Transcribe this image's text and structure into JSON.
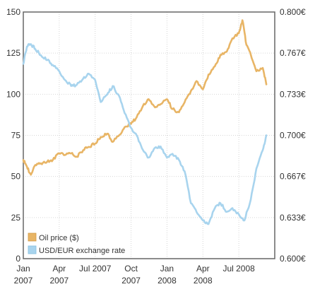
{
  "chart_data": {
    "type": "line",
    "title": "",
    "xlabel": "",
    "ylabel": "",
    "y_left": {
      "range": [
        0,
        150
      ],
      "ticks": [
        "0",
        "25",
        "50",
        "75",
        "100",
        "125",
        "150"
      ]
    },
    "y_right": {
      "range": [
        0.6,
        0.8
      ],
      "ticks": [
        "0.600€",
        "0.633€",
        "0.667€",
        "0.700€",
        "0.733€",
        "0.767€",
        "0.800€"
      ]
    },
    "x_axis": {
      "range": [
        "2007-01",
        "2008-10"
      ],
      "ticks": [
        {
          "month": 0,
          "line1": "Jan",
          "line2": "2007"
        },
        {
          "month": 3,
          "line1": "Apr",
          "line2": "2007"
        },
        {
          "month": 6,
          "line1": "Jul 2007",
          "line2": ""
        },
        {
          "month": 9,
          "line1": "Oct",
          "line2": "2007"
        },
        {
          "month": 12,
          "line1": "Jan",
          "line2": "2008"
        },
        {
          "month": 15,
          "line1": "Apr",
          "line2": "2008"
        },
        {
          "month": 18,
          "line1": "Jul 2008",
          "line2": ""
        }
      ]
    },
    "grid": true,
    "legend": {
      "position": "bottom-left"
    },
    "series": [
      {
        "name": "Oil price ($)",
        "axis": "left",
        "color": "#e8b566",
        "points": [
          [
            "2007-01-01",
            60
          ],
          [
            "2007-01-10",
            56
          ],
          [
            "2007-01-20",
            51
          ],
          [
            "2007-02-01",
            57
          ],
          [
            "2007-02-15",
            58
          ],
          [
            "2007-03-01",
            59
          ],
          [
            "2007-03-15",
            60
          ],
          [
            "2007-04-01",
            64
          ],
          [
            "2007-04-15",
            63
          ],
          [
            "2007-05-01",
            64
          ],
          [
            "2007-05-15",
            62
          ],
          [
            "2007-06-01",
            66
          ],
          [
            "2007-06-15",
            68
          ],
          [
            "2007-07-01",
            70
          ],
          [
            "2007-07-15",
            74
          ],
          [
            "2007-08-01",
            76
          ],
          [
            "2007-08-15",
            71
          ],
          [
            "2007-09-01",
            75
          ],
          [
            "2007-09-15",
            80
          ],
          [
            "2007-10-01",
            82
          ],
          [
            "2007-10-15",
            86
          ],
          [
            "2007-11-01",
            93
          ],
          [
            "2007-11-15",
            97
          ],
          [
            "2007-12-01",
            92
          ],
          [
            "2007-12-15",
            94
          ],
          [
            "2008-01-01",
            97
          ],
          [
            "2008-01-15",
            91
          ],
          [
            "2008-02-01",
            89
          ],
          [
            "2008-02-15",
            95
          ],
          [
            "2008-03-01",
            102
          ],
          [
            "2008-03-15",
            108
          ],
          [
            "2008-04-01",
            103
          ],
          [
            "2008-04-15",
            112
          ],
          [
            "2008-05-01",
            117
          ],
          [
            "2008-05-15",
            124
          ],
          [
            "2008-06-01",
            126
          ],
          [
            "2008-06-15",
            134
          ],
          [
            "2008-07-01",
            137
          ],
          [
            "2008-07-10",
            145
          ],
          [
            "2008-07-20",
            130
          ],
          [
            "2008-08-01",
            124
          ],
          [
            "2008-08-15",
            114
          ],
          [
            "2008-09-01",
            116
          ],
          [
            "2008-09-10",
            106
          ]
        ]
      },
      {
        "name": "USD/EUR exchange rate",
        "axis": "right",
        "color": "#a8d4ee",
        "points": [
          [
            "2007-01-01",
            0.758
          ],
          [
            "2007-01-10",
            0.772
          ],
          [
            "2007-01-20",
            0.774
          ],
          [
            "2007-02-01",
            0.77
          ],
          [
            "2007-02-15",
            0.765
          ],
          [
            "2007-03-01",
            0.761
          ],
          [
            "2007-03-15",
            0.757
          ],
          [
            "2007-04-01",
            0.752
          ],
          [
            "2007-04-15",
            0.745
          ],
          [
            "2007-05-01",
            0.74
          ],
          [
            "2007-05-15",
            0.741
          ],
          [
            "2007-06-01",
            0.746
          ],
          [
            "2007-06-15",
            0.75
          ],
          [
            "2007-07-01",
            0.745
          ],
          [
            "2007-07-15",
            0.727
          ],
          [
            "2007-08-01",
            0.733
          ],
          [
            "2007-08-15",
            0.74
          ],
          [
            "2007-09-01",
            0.732
          ],
          [
            "2007-09-15",
            0.718
          ],
          [
            "2007-10-01",
            0.706
          ],
          [
            "2007-10-15",
            0.7
          ],
          [
            "2007-11-01",
            0.688
          ],
          [
            "2007-11-15",
            0.682
          ],
          [
            "2007-12-01",
            0.69
          ],
          [
            "2007-12-15",
            0.691
          ],
          [
            "2008-01-01",
            0.682
          ],
          [
            "2008-01-15",
            0.685
          ],
          [
            "2008-02-01",
            0.68
          ],
          [
            "2008-02-15",
            0.671
          ],
          [
            "2008-03-01",
            0.645
          ],
          [
            "2008-03-15",
            0.638
          ],
          [
            "2008-04-01",
            0.631
          ],
          [
            "2008-04-15",
            0.628
          ],
          [
            "2008-05-01",
            0.641
          ],
          [
            "2008-05-15",
            0.645
          ],
          [
            "2008-06-01",
            0.638
          ],
          [
            "2008-06-15",
            0.641
          ],
          [
            "2008-07-01",
            0.636
          ],
          [
            "2008-07-15",
            0.631
          ],
          [
            "2008-08-01",
            0.648
          ],
          [
            "2008-08-15",
            0.673
          ],
          [
            "2008-09-01",
            0.688
          ],
          [
            "2008-09-10",
            0.7
          ]
        ]
      }
    ]
  }
}
